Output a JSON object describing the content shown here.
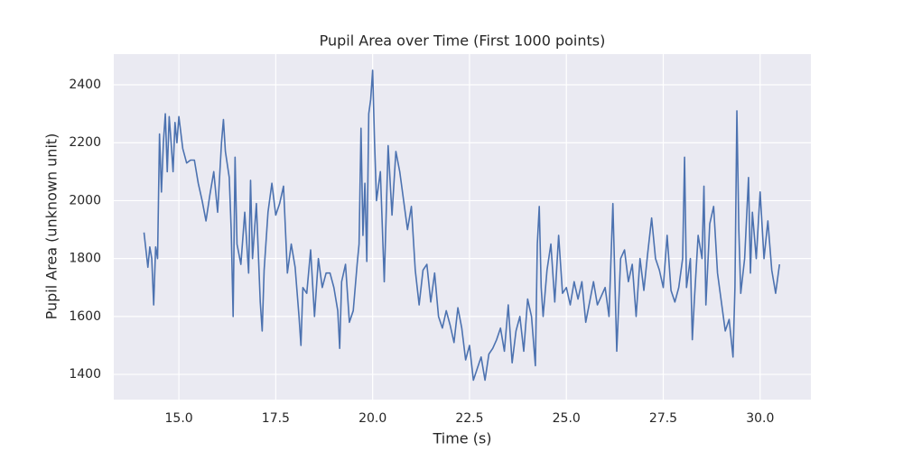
{
  "chart_data": {
    "type": "line",
    "title": "Pupil Area over Time (First 1000 points)",
    "x_label": "Time (s)",
    "y_label": "Pupil Area (unknown unit)",
    "grid": true,
    "background": "#eaeaf2",
    "xlim": [
      13.32,
      31.31
    ],
    "ylim": [
      1313,
      2506
    ],
    "xticks": [
      {
        "value": 15,
        "label": "15.0"
      },
      {
        "value": 17.5,
        "label": "17.5"
      },
      {
        "value": 20,
        "label": "20.0"
      },
      {
        "value": 22.5,
        "label": "22.5"
      },
      {
        "value": 25,
        "label": "25.0"
      },
      {
        "value": 27.5,
        "label": "27.5"
      },
      {
        "value": 30,
        "label": "30.0"
      }
    ],
    "yticks": [
      1400,
      1600,
      1800,
      2000,
      2200,
      2400
    ],
    "x": [
      14.1,
      14.2,
      14.25,
      14.3,
      14.35,
      14.4,
      14.45,
      14.5,
      14.55,
      14.6,
      14.65,
      14.7,
      14.75,
      14.8,
      14.85,
      14.9,
      14.95,
      15.0,
      15.1,
      15.2,
      15.3,
      15.4,
      15.5,
      15.6,
      15.7,
      15.8,
      15.9,
      16.0,
      16.1,
      16.15,
      16.2,
      16.3,
      16.35,
      16.4,
      16.45,
      16.5,
      16.6,
      16.7,
      16.8,
      16.85,
      16.9,
      17.0,
      17.1,
      17.15,
      17.2,
      17.3,
      17.4,
      17.5,
      17.6,
      17.7,
      17.8,
      17.9,
      18.0,
      18.1,
      18.15,
      18.2,
      18.3,
      18.4,
      18.5,
      18.6,
      18.7,
      18.8,
      18.9,
      19.0,
      19.1,
      19.15,
      19.2,
      19.3,
      19.4,
      19.5,
      19.6,
      19.65,
      19.7,
      19.75,
      19.8,
      19.85,
      19.9,
      19.95,
      20.0,
      20.05,
      20.1,
      20.2,
      20.3,
      20.4,
      20.5,
      20.6,
      20.7,
      20.8,
      20.9,
      21.0,
      21.1,
      21.2,
      21.3,
      21.4,
      21.5,
      21.6,
      21.7,
      21.8,
      21.9,
      22.0,
      22.1,
      22.2,
      22.3,
      22.4,
      22.5,
      22.6,
      22.7,
      22.8,
      22.9,
      23.0,
      23.1,
      23.2,
      23.3,
      23.4,
      23.5,
      23.6,
      23.7,
      23.8,
      23.9,
      24.0,
      24.1,
      24.2,
      24.25,
      24.3,
      24.35,
      24.4,
      24.5,
      24.6,
      24.7,
      24.8,
      24.9,
      25.0,
      25.1,
      25.2,
      25.3,
      25.4,
      25.5,
      25.6,
      25.7,
      25.8,
      25.9,
      26.0,
      26.1,
      26.2,
      26.3,
      26.4,
      26.5,
      26.6,
      26.7,
      26.8,
      26.9,
      27.0,
      27.1,
      27.2,
      27.3,
      27.4,
      27.5,
      27.6,
      27.7,
      27.8,
      27.9,
      28.0,
      28.05,
      28.1,
      28.2,
      28.25,
      28.3,
      28.4,
      28.5,
      28.55,
      28.6,
      28.7,
      28.8,
      28.9,
      29.0,
      29.1,
      29.2,
      29.3,
      29.35,
      29.4,
      29.45,
      29.5,
      29.6,
      29.7,
      29.75,
      29.8,
      29.9,
      30.0,
      30.1,
      30.2,
      30.3,
      30.4,
      30.5
    ],
    "series": [
      {
        "color": "#4c72b0",
        "values": [
          1890,
          1770,
          1840,
          1800,
          1640,
          1840,
          1800,
          2230,
          2030,
          2200,
          2300,
          2100,
          2290,
          2200,
          2100,
          2270,
          2200,
          2290,
          2180,
          2130,
          2140,
          2140,
          2060,
          2000,
          1930,
          2020,
          2100,
          1960,
          2200,
          2280,
          2170,
          2080,
          1900,
          1600,
          2150,
          1850,
          1780,
          1960,
          1750,
          2070,
          1800,
          1990,
          1650,
          1550,
          1760,
          1960,
          2060,
          1950,
          1990,
          2050,
          1750,
          1850,
          1770,
          1600,
          1500,
          1700,
          1680,
          1830,
          1600,
          1800,
          1700,
          1750,
          1750,
          1700,
          1620,
          1490,
          1720,
          1780,
          1580,
          1620,
          1780,
          1850,
          2250,
          1880,
          2060,
          1790,
          2300,
          2350,
          2450,
          2200,
          2000,
          2100,
          1720,
          2190,
          1950,
          2170,
          2100,
          2000,
          1900,
          1980,
          1760,
          1640,
          1760,
          1780,
          1650,
          1750,
          1600,
          1560,
          1620,
          1570,
          1510,
          1630,
          1560,
          1450,
          1500,
          1380,
          1420,
          1460,
          1380,
          1470,
          1490,
          1520,
          1560,
          1480,
          1640,
          1440,
          1550,
          1600,
          1480,
          1660,
          1600,
          1430,
          1850,
          1980,
          1700,
          1600,
          1760,
          1850,
          1650,
          1880,
          1680,
          1700,
          1640,
          1720,
          1660,
          1720,
          1580,
          1650,
          1720,
          1640,
          1670,
          1700,
          1600,
          1990,
          1480,
          1800,
          1830,
          1720,
          1780,
          1600,
          1800,
          1690,
          1820,
          1940,
          1800,
          1760,
          1700,
          1880,
          1690,
          1650,
          1700,
          1800,
          2150,
          1700,
          1800,
          1520,
          1650,
          1880,
          1800,
          2050,
          1640,
          1920,
          1980,
          1750,
          1650,
          1550,
          1590,
          1460,
          1700,
          2310,
          1900,
          1680,
          1800,
          2080,
          1750,
          1960,
          1800,
          2030,
          1800,
          1930,
          1760,
          1680,
          1780
        ]
      }
    ]
  }
}
